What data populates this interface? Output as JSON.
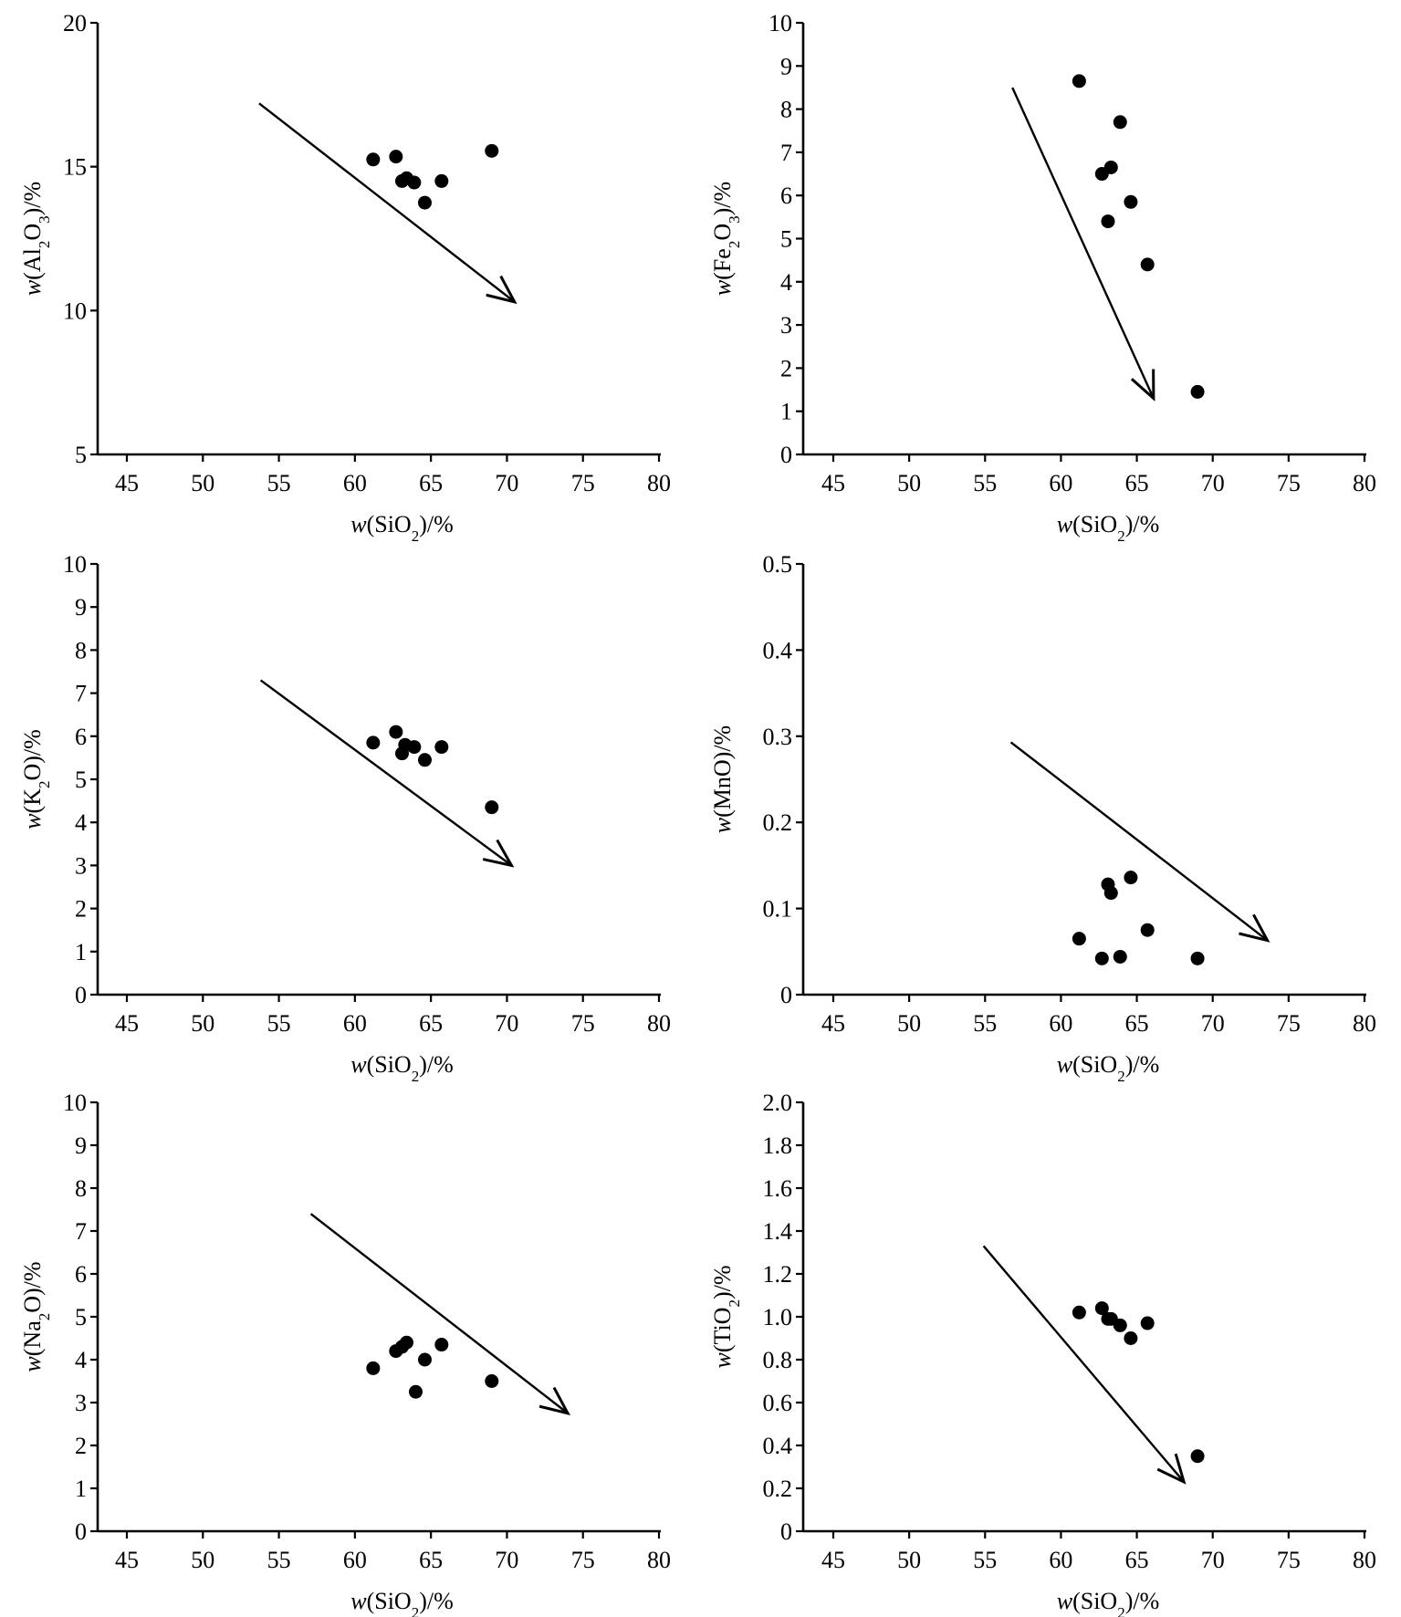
{
  "chart_data": [
    {
      "type": "scatter",
      "id": "al2o3",
      "xlabel": {
        "prefix": "w",
        "main": "(SiO",
        "sub": "2",
        "suffix": ")/%"
      },
      "ylabel": {
        "prefix": "w",
        "main": "(Al",
        "sub": "2",
        "mid": "O",
        "sub2": "3",
        "suffix": ")/%"
      },
      "xlim": [
        43,
        80
      ],
      "ylim": [
        5,
        20
      ],
      "xticks": [
        45,
        50,
        55,
        60,
        65,
        70,
        75,
        80
      ],
      "yticks": [
        5,
        10,
        15,
        20
      ],
      "ytick_labels": [
        "5",
        "10",
        "15",
        "20"
      ],
      "grid": false,
      "points": [
        {
          "x": 61.2,
          "y": 15.25
        },
        {
          "x": 62.7,
          "y": 15.35
        },
        {
          "x": 63.1,
          "y": 14.5
        },
        {
          "x": 63.4,
          "y": 14.6
        },
        {
          "x": 63.9,
          "y": 14.45
        },
        {
          "x": 64.6,
          "y": 13.75
        },
        {
          "x": 65.7,
          "y": 14.5
        },
        {
          "x": 69.0,
          "y": 15.55
        }
      ],
      "trend_arrow": {
        "from": [
          53.7,
          17.2
        ],
        "to": [
          70.5,
          10.3
        ]
      }
    },
    {
      "type": "scatter",
      "id": "fe2o3",
      "xlabel": {
        "prefix": "w",
        "main": "(SiO",
        "sub": "2",
        "suffix": ")/%"
      },
      "ylabel": {
        "prefix": "w",
        "main": "(Fe",
        "sub": "2",
        "mid": "O",
        "sub2": "3",
        "suffix": ")/%"
      },
      "xlim": [
        43,
        80
      ],
      "ylim": [
        0,
        10
      ],
      "xticks": [
        45,
        50,
        55,
        60,
        65,
        70,
        75,
        80
      ],
      "yticks": [
        0,
        1,
        2,
        3,
        4,
        5,
        6,
        7,
        8,
        9,
        10
      ],
      "ytick_labels": [
        "0",
        "1",
        "2",
        "3",
        "4",
        "5",
        "6",
        "7",
        "8",
        "9",
        "10"
      ],
      "grid": false,
      "points": [
        {
          "x": 61.2,
          "y": 8.65
        },
        {
          "x": 62.7,
          "y": 6.5
        },
        {
          "x": 63.1,
          "y": 5.4
        },
        {
          "x": 63.3,
          "y": 6.65
        },
        {
          "x": 63.9,
          "y": 7.7
        },
        {
          "x": 64.6,
          "y": 5.85
        },
        {
          "x": 65.7,
          "y": 4.4
        },
        {
          "x": 69.0,
          "y": 1.45
        }
      ],
      "trend_arrow": {
        "from": [
          56.8,
          8.5
        ],
        "to": [
          66.1,
          1.3
        ]
      }
    },
    {
      "type": "scatter",
      "id": "k2o",
      "xlabel": {
        "prefix": "w",
        "main": "(SiO",
        "sub": "2",
        "suffix": ")/%"
      },
      "ylabel": {
        "prefix": "w",
        "main": "(K",
        "sub": "2",
        "mid": "O",
        "sub2": "",
        "suffix": ")/%"
      },
      "xlim": [
        43,
        80
      ],
      "ylim": [
        0,
        10
      ],
      "xticks": [
        45,
        50,
        55,
        60,
        65,
        70,
        75,
        80
      ],
      "yticks": [
        0,
        1,
        2,
        3,
        4,
        5,
        6,
        7,
        8,
        9,
        10
      ],
      "ytick_labels": [
        "0",
        "1",
        "2",
        "3",
        "4",
        "5",
        "6",
        "7",
        "8",
        "9",
        "10"
      ],
      "grid": false,
      "points": [
        {
          "x": 61.2,
          "y": 5.85
        },
        {
          "x": 62.7,
          "y": 6.1
        },
        {
          "x": 63.1,
          "y": 5.6
        },
        {
          "x": 63.3,
          "y": 5.8
        },
        {
          "x": 63.9,
          "y": 5.75
        },
        {
          "x": 64.6,
          "y": 5.45
        },
        {
          "x": 65.7,
          "y": 5.75
        },
        {
          "x": 69.0,
          "y": 4.35
        }
      ],
      "trend_arrow": {
        "from": [
          53.8,
          7.3
        ],
        "to": [
          70.3,
          3.0
        ]
      }
    },
    {
      "type": "scatter",
      "id": "mno",
      "xlabel": {
        "prefix": "w",
        "main": "(SiO",
        "sub": "2",
        "suffix": ")/%"
      },
      "ylabel": {
        "prefix": "w",
        "main": "(MnO)/%",
        "sub": "",
        "mid": "",
        "sub2": "",
        "suffix": ""
      },
      "xlim": [
        43,
        80
      ],
      "ylim": [
        0,
        0.5
      ],
      "xticks": [
        45,
        50,
        55,
        60,
        65,
        70,
        75,
        80
      ],
      "yticks": [
        0,
        0.1,
        0.2,
        0.3,
        0.4,
        0.5
      ],
      "ytick_labels": [
        "0",
        "0.1",
        "0.2",
        "0.3",
        "0.4",
        "0.5"
      ],
      "grid": false,
      "points": [
        {
          "x": 61.2,
          "y": 0.065
        },
        {
          "x": 62.7,
          "y": 0.042
        },
        {
          "x": 63.1,
          "y": 0.128
        },
        {
          "x": 63.3,
          "y": 0.118
        },
        {
          "x": 63.9,
          "y": 0.044
        },
        {
          "x": 64.6,
          "y": 0.136
        },
        {
          "x": 65.7,
          "y": 0.075
        },
        {
          "x": 69.0,
          "y": 0.042
        }
      ],
      "trend_arrow": {
        "from": [
          56.7,
          0.293
        ],
        "to": [
          73.6,
          0.063
        ]
      }
    },
    {
      "type": "scatter",
      "id": "na2o",
      "xlabel": {
        "prefix": "w",
        "main": "(SiO",
        "sub": "2",
        "suffix": ")/%"
      },
      "ylabel": {
        "prefix": "w",
        "main": "(Na",
        "sub": "2",
        "mid": "O)/%",
        "sub2": "",
        "suffix": ""
      },
      "xlim": [
        43,
        80
      ],
      "ylim": [
        0,
        10
      ],
      "xticks": [
        45,
        50,
        55,
        60,
        65,
        70,
        75,
        80
      ],
      "yticks": [
        0,
        1,
        2,
        3,
        4,
        5,
        6,
        7,
        8,
        9,
        10
      ],
      "ytick_labels": [
        "0",
        "1",
        "2",
        "3",
        "4",
        "5",
        "6",
        "7",
        "8",
        "9",
        "10"
      ],
      "grid": false,
      "points": [
        {
          "x": 61.2,
          "y": 3.8
        },
        {
          "x": 62.7,
          "y": 4.2
        },
        {
          "x": 63.1,
          "y": 4.3
        },
        {
          "x": 63.4,
          "y": 4.4
        },
        {
          "x": 64.0,
          "y": 3.25
        },
        {
          "x": 64.6,
          "y": 4.0
        },
        {
          "x": 65.7,
          "y": 4.35
        },
        {
          "x": 69.0,
          "y": 3.5
        }
      ],
      "trend_arrow": {
        "from": [
          57.1,
          7.4
        ],
        "to": [
          74.0,
          2.75
        ]
      }
    },
    {
      "type": "scatter",
      "id": "tio2",
      "xlabel": {
        "prefix": "w",
        "main": "(SiO",
        "sub": "2",
        "suffix": ")/%"
      },
      "ylabel": {
        "prefix": "w",
        "main": "(TiO",
        "sub": "2",
        "mid": ")/%",
        "sub2": "",
        "suffix": ""
      },
      "xlim": [
        43,
        80
      ],
      "ylim": [
        0,
        2.0
      ],
      "xticks": [
        45,
        50,
        55,
        60,
        65,
        70,
        75,
        80
      ],
      "yticks": [
        0,
        0.2,
        0.4,
        0.6,
        0.8,
        1.0,
        1.2,
        1.4,
        1.6,
        1.8,
        2.0
      ],
      "ytick_labels": [
        "0",
        "0.2",
        "0.4",
        "0.6",
        "0.8",
        "1.0",
        "1.2",
        "1.4",
        "1.6",
        "1.8",
        "2.0"
      ],
      "grid": false,
      "points": [
        {
          "x": 61.2,
          "y": 1.02
        },
        {
          "x": 62.7,
          "y": 1.04
        },
        {
          "x": 63.1,
          "y": 0.99
        },
        {
          "x": 63.3,
          "y": 0.99
        },
        {
          "x": 63.9,
          "y": 0.96
        },
        {
          "x": 64.6,
          "y": 0.9
        },
        {
          "x": 65.7,
          "y": 0.97
        },
        {
          "x": 69.0,
          "y": 0.35
        }
      ],
      "trend_arrow": {
        "from": [
          54.9,
          1.33
        ],
        "to": [
          68.1,
          0.23
        ]
      }
    }
  ]
}
